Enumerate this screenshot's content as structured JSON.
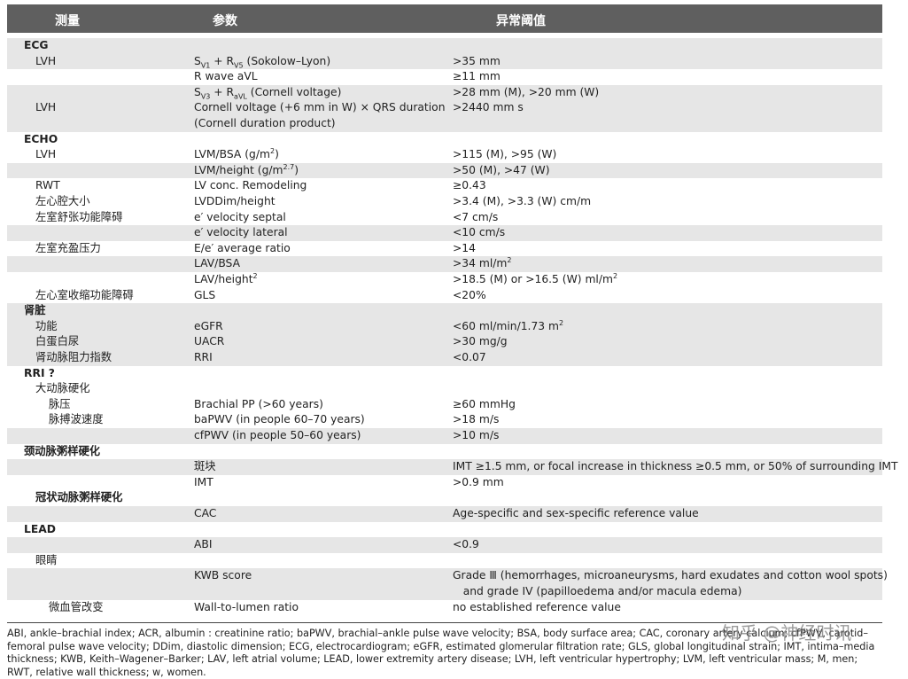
{
  "header": {
    "measure": "测量",
    "param": "参数",
    "threshold": "异常阈值"
  },
  "table": {
    "rows": [
      {
        "section": "ECG"
      },
      {
        "measure": "LVH",
        "param": [
          "S",
          {
            "sub": "V1"
          },
          " + R",
          {
            "sub": "V5"
          },
          " (Sokolow–Lyon)"
        ],
        "threshold": ">35 mm"
      },
      {
        "param": "R wave aVL",
        "threshold": "≥11 mm"
      },
      {
        "param": [
          "S",
          {
            "sub": "V3"
          },
          " + R",
          {
            "sub": "aVL"
          },
          " (Cornell voltage)"
        ],
        "threshold": ">28 mm (M), >20 mm (W)"
      },
      {
        "measure": "LVH",
        "param": "Cornell voltage (+6 mm in W) × QRS duration",
        "threshold": ">2440 mm s"
      },
      {
        "param": "(Cornell duration product)"
      },
      {
        "section": "ECHO"
      },
      {
        "measure": "LVH",
        "param": [
          "LVM/BSA (g/m",
          {
            "sup": "2"
          },
          ")"
        ],
        "threshold": ">115 (M), >95 (W)"
      },
      {
        "param": [
          "LVM/height (g/m",
          {
            "sup": "2.7"
          },
          ")"
        ],
        "threshold": ">50 (M), >47 (W)"
      },
      {
        "measure": "RWT",
        "param": "LV conc. Remodeling",
        "threshold": "≥0.43"
      },
      {
        "measure": "左心腔大小",
        "param": "LVDDim/height",
        "threshold": ">3.4 (M), >3.3 (W) cm/m"
      },
      {
        "measure": "左室舒张功能障碍",
        "param": "e′ velocity septal",
        "threshold": "<7 cm/s"
      },
      {
        "param": "e′ velocity lateral",
        "threshold": "<10 cm/s"
      },
      {
        "measure": "左室充盈压力",
        "param": "E/e′ average ratio",
        "threshold": ">14"
      },
      {
        "param": "LAV/BSA",
        "threshold": [
          ">34 ml/m",
          {
            "sup": "2"
          }
        ]
      },
      {
        "param": [
          "LAV/height",
          {
            "sup": "2"
          }
        ],
        "threshold": [
          ">18.5 (M) or >16.5 (W) ml/m",
          {
            "sup": "2"
          }
        ]
      },
      {
        "measure": "左心室收缩功能障碍",
        "param": "GLS",
        "threshold": "<20%"
      },
      {
        "section": "肾脏"
      },
      {
        "measure": "功能",
        "param": "eGFR",
        "threshold": [
          "<60 ml/min/1.73 m",
          {
            "sup": "2"
          }
        ]
      },
      {
        "measure": "白蛋白尿",
        "param": "UACR",
        "threshold": ">30 mg/g"
      },
      {
        "measure": "肾动脉阻力指数",
        "param": "RRI",
        "threshold": "<0.07"
      },
      {
        "section": "RRI ?"
      },
      {
        "measure": "大动脉硬化"
      },
      {
        "submeasure": "脉压",
        "param": "Brachial PP (>60 years)",
        "threshold": "≥60 mmHg"
      },
      {
        "submeasure": "脉搏波速度",
        "param": "baPWV (in people 60–70 years)",
        "threshold": ">18 m/s"
      },
      {
        "param": "cfPWV (in people 50–60 years)",
        "threshold": ">10 m/s"
      },
      {
        "section": "颈动脉粥样硬化"
      },
      {
        "param": "斑块",
        "threshold": "IMT ≥1.5 mm, or focal increase in thickness ≥0.5 mm, or 50% of surrounding IMT"
      },
      {
        "param": "IMT",
        "threshold": ">0.9 mm"
      },
      {
        "subsection": "冠状动脉粥样硬化"
      },
      {
        "param": "CAC",
        "threshold": "Age-specific and sex-specific reference value"
      },
      {
        "section": "LEAD"
      },
      {
        "param": "ABI",
        "threshold": "<0.9"
      },
      {
        "measure": "眼睛"
      },
      {
        "param": "KWB score",
        "threshold": "Grade Ⅲ (hemorrhages, microaneurysms, hard exudates and cotton wool spots)"
      },
      {
        "threshold": "   and grade IV (papilloedema and/or macula edema)"
      },
      {
        "submeasure": "微血管改变",
        "param": "Wall-to-lumen ratio",
        "threshold": "no established reference value"
      }
    ]
  },
  "footnote": "ABI, ankle–brachial index; ACR, albumin : creatinine ratio; baPWV, brachial–ankle pulse wave velocity; BSA, body surface area; CAC, coronary artery calcium; cfPWV, carotid–femoral pulse wave velocity; DDim, diastolic dimension; ECG, electrocardiogram; eGFR, estimated glomerular filtration rate; GLS, global longitudinal strain; IMT, intima–media thickness; KWB, Keith–Wagener–Barker; LAV, left atrial volume; LEAD, lower extremity artery disease; LVH, left ventricular hypertrophy; LVM, left ventricular mass; M, men; RWT, relative wall thickness; w, women.",
  "watermark": "知乎 @神经时讯"
}
